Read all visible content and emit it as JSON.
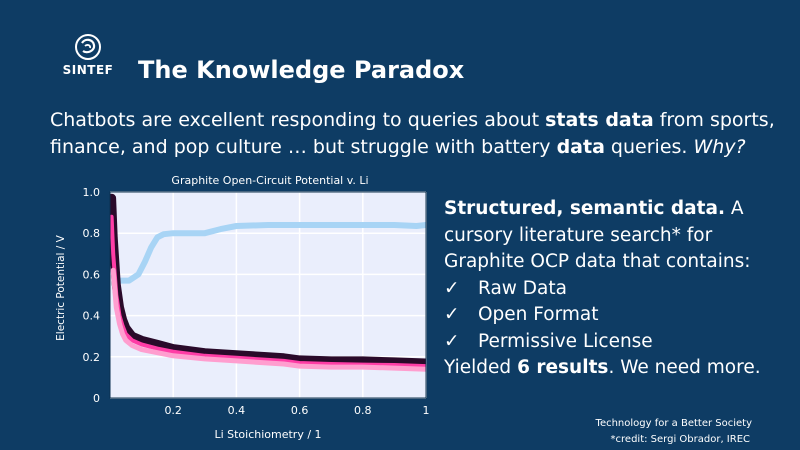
{
  "slide": {
    "logo_text": "SINTEF",
    "title": "The Knowledge Paradox",
    "intro": {
      "p1": "Chatbots are excellent responding to queries about ",
      "b1": "stats data",
      "p2": " from sports, finance, and pop culture … but struggle with battery ",
      "b2": "data",
      "p3": " queries. ",
      "why": "Why?"
    },
    "side": {
      "heading": "Structured, semantic data.",
      "text": " A cursory literature search* for Graphite OCP data that contains:",
      "checks": [
        "Raw Data",
        "Open Format",
        "Permissive License"
      ],
      "check_glyph": "✓",
      "result_pre": "Yielded ",
      "result_bold": "6 results",
      "result_post": ". We need more."
    },
    "footer": {
      "tagline": "Technology for a Better Society",
      "credit": "*credit: Sergi Obrador, IREC"
    }
  },
  "chart_data": {
    "type": "line",
    "title": "Graphite Open-Circuit Potential v. Li",
    "xlabel": "Li Stoichiometry  /  1",
    "ylabel": "Electric Potential  /  V",
    "xlim": [
      0,
      1
    ],
    "ylim": [
      0,
      1.0
    ],
    "xticks": [
      0.2,
      0.4,
      0.6,
      0.8,
      1
    ],
    "xtick_labels": [
      "0.2",
      "0.4",
      "0.6",
      "0.8",
      "1"
    ],
    "yticks": [
      0,
      0.2,
      0.4,
      0.6,
      0.8,
      1.0
    ],
    "ytick_labels": [
      "0",
      "0.2",
      "0.4",
      "0.6",
      "0.8",
      "1.0"
    ],
    "grid": true,
    "background": "#eaeefc",
    "series": [
      {
        "color": "#a8d4f5",
        "width": 6,
        "x": [
          0.03,
          0.06,
          0.09,
          0.11,
          0.13,
          0.15,
          0.17,
          0.2,
          0.25,
          0.3,
          0.35,
          0.4,
          0.5,
          0.6,
          0.7,
          0.8,
          0.9,
          0.97,
          1.0
        ],
        "y": [
          0.57,
          0.57,
          0.6,
          0.66,
          0.73,
          0.78,
          0.795,
          0.8,
          0.8,
          0.8,
          0.82,
          0.835,
          0.84,
          0.84,
          0.84,
          0.84,
          0.84,
          0.835,
          0.84
        ]
      },
      {
        "color": "#2a0a2a",
        "width": 9,
        "x": [
          0.005,
          0.01,
          0.02,
          0.03,
          0.04,
          0.05,
          0.07,
          0.1,
          0.15,
          0.2,
          0.3,
          0.4,
          0.5,
          0.55,
          0.6,
          0.7,
          0.8,
          0.9,
          1.0
        ],
        "y": [
          0.97,
          0.78,
          0.55,
          0.44,
          0.38,
          0.34,
          0.3,
          0.28,
          0.26,
          0.24,
          0.22,
          0.21,
          0.2,
          0.195,
          0.185,
          0.18,
          0.18,
          0.175,
          0.17
        ]
      },
      {
        "color": "#ff3da6",
        "width": 4,
        "x": [
          0.005,
          0.01,
          0.02,
          0.03,
          0.04,
          0.05,
          0.07,
          0.1,
          0.15,
          0.2,
          0.3,
          0.4,
          0.5,
          0.55,
          0.6,
          0.7,
          0.8,
          0.9,
          1.0
        ],
        "y": [
          0.88,
          0.7,
          0.5,
          0.4,
          0.35,
          0.31,
          0.28,
          0.26,
          0.24,
          0.225,
          0.205,
          0.195,
          0.185,
          0.18,
          0.17,
          0.165,
          0.162,
          0.16,
          0.155
        ]
      },
      {
        "color": "#ff9ecf",
        "width": 5,
        "x": [
          0.01,
          0.02,
          0.03,
          0.04,
          0.05,
          0.07,
          0.1,
          0.15,
          0.2,
          0.3,
          0.4,
          0.5,
          0.55,
          0.6,
          0.7,
          0.8,
          0.9,
          1.0
        ],
        "y": [
          0.62,
          0.44,
          0.36,
          0.31,
          0.28,
          0.255,
          0.235,
          0.22,
          0.205,
          0.19,
          0.18,
          0.17,
          0.165,
          0.155,
          0.15,
          0.15,
          0.145,
          0.14
        ]
      }
    ]
  }
}
